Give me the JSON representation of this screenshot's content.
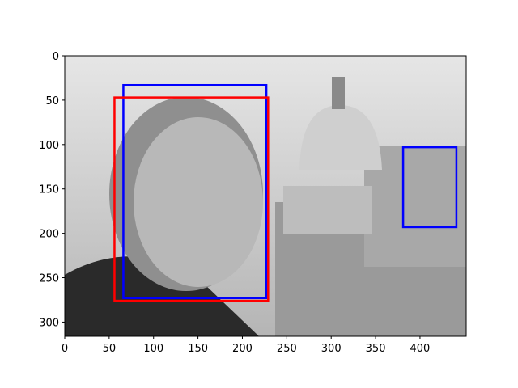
{
  "chart_data": {
    "type": "image",
    "xlim": [
      0,
      452
    ],
    "ylim": [
      316,
      0
    ],
    "xticks": [
      0,
      50,
      100,
      150,
      200,
      250,
      300,
      350,
      400
    ],
    "yticks": [
      0,
      50,
      100,
      150,
      200,
      250,
      300
    ],
    "boxes": [
      {
        "color": "#0000ff",
        "x0": 66,
        "y0": 33,
        "x1": 227,
        "y1": 273
      },
      {
        "color": "#ff0000",
        "x0": 56,
        "y0": 47,
        "x1": 229,
        "y1": 276
      },
      {
        "color": "#0000ff",
        "x0": 381,
        "y0": 103,
        "x1": 441,
        "y1": 193
      }
    ]
  }
}
